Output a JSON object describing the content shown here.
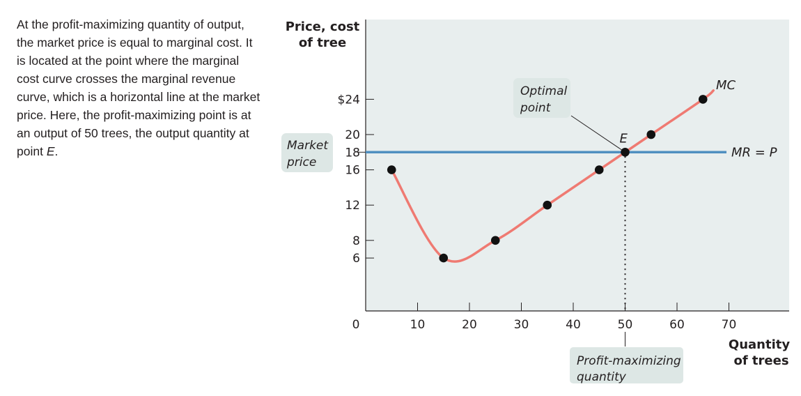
{
  "caption": {
    "pre": "At the profit-maximizing quantity of output, the market price is equal to marginal cost. It is located at the point where the marginal cost curve crosses the marginal revenue curve, which is a horizontal line at the market price. Here, the profit-maximizing point is at an output of 50 trees, the output quantity at point ",
    "emph": "E",
    "post": "."
  },
  "colors": {
    "mc_curve": "#ef7a72",
    "mr_line": "#4f8fc0",
    "points": "#111111",
    "callout_bg": "#dde7e5",
    "axis_bg": "#e8eeee"
  },
  "chart_data": {
    "type": "line",
    "y_axis_label_line1": "Price, cost",
    "y_axis_label_line2": "of tree",
    "x_axis_label_line1": "Quantity",
    "x_axis_label_line2": "of trees",
    "x_ticks": [
      0,
      10,
      20,
      30,
      40,
      50,
      60,
      70
    ],
    "x_tick_labels": [
      "0",
      "10",
      "20",
      "30",
      "40",
      "50",
      "60",
      "70"
    ],
    "y_ticks": [
      6,
      8,
      12,
      16,
      18,
      20,
      24
    ],
    "y_tick_labels": [
      "6",
      "8",
      "12",
      "16",
      "18",
      "20",
      "$24"
    ],
    "xlim": [
      0,
      82
    ],
    "ylim": [
      0,
      28
    ],
    "series": [
      {
        "name": "MC",
        "label": "MC",
        "points": [
          [
            5,
            16
          ],
          [
            15,
            6
          ],
          [
            25,
            8
          ],
          [
            35,
            12
          ],
          [
            45,
            16
          ],
          [
            50,
            18
          ],
          [
            55,
            20
          ],
          [
            65,
            24
          ]
        ],
        "curve_end": [
          67,
          25
        ]
      },
      {
        "name": "MR = P",
        "label": "MR = P",
        "y": 18
      }
    ],
    "point_E": {
      "label": "E",
      "x": 50,
      "y": 18
    },
    "annotations": {
      "optimal_point_line1": "Optimal",
      "optimal_point_line2": "point",
      "market_price_line1": "Market",
      "market_price_line2": "price",
      "profit_max_line1": "Profit-maximizing",
      "profit_max_line2": "quantity"
    }
  }
}
